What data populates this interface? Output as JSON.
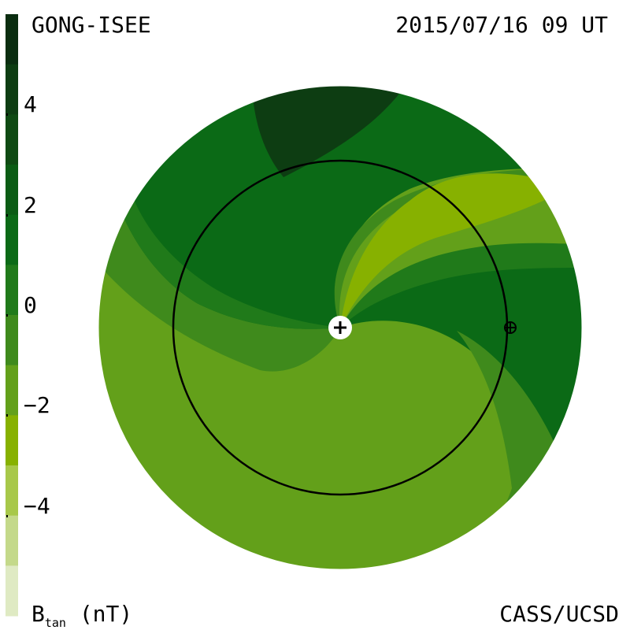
{
  "header": {
    "source": "GONG-ISEE",
    "datetime": "2015/07/16 09 UT"
  },
  "footer": {
    "credit": "CASS/UCSD",
    "quantity": "B",
    "quantity_sub": "tan",
    "units": "(nT)"
  },
  "colorbar": {
    "ticks": [
      {
        "value": 4,
        "label": "4"
      },
      {
        "value": 2,
        "label": "2"
      },
      {
        "value": 0,
        "label": "0"
      },
      {
        "value": -2,
        "label": "−2"
      },
      {
        "value": -4,
        "label": "−4"
      }
    ],
    "range": [
      -6,
      6
    ],
    "levels": [
      {
        "min": 5,
        "max": 6,
        "color": "#0a2d10"
      },
      {
        "min": 4,
        "max": 5,
        "color": "#0d3d12"
      },
      {
        "min": 3,
        "max": 4,
        "color": "#0f4a13"
      },
      {
        "min": 2,
        "max": 3,
        "color": "#0b5c14"
      },
      {
        "min": 1,
        "max": 2,
        "color": "#0b6a16"
      },
      {
        "min": 0,
        "max": 1,
        "color": "#207a1a"
      },
      {
        "min": -1,
        "max": 0,
        "color": "#3f8a1c"
      },
      {
        "min": -2,
        "max": -1,
        "color": "#63a01a"
      },
      {
        "min": -3,
        "max": -2,
        "color": "#87b100"
      },
      {
        "min": -4,
        "max": -3,
        "color": "#a8c84a"
      },
      {
        "min": -5,
        "max": -4,
        "color": "#c4d98a"
      },
      {
        "min": -6,
        "max": -5,
        "color": "#dfeac3"
      }
    ]
  },
  "map": {
    "markers": [
      {
        "name": "sun-marker",
        "symbol": "+"
      },
      {
        "name": "earth-marker",
        "symbol": "⊕"
      }
    ],
    "earth_orbit": "1 AU"
  }
}
